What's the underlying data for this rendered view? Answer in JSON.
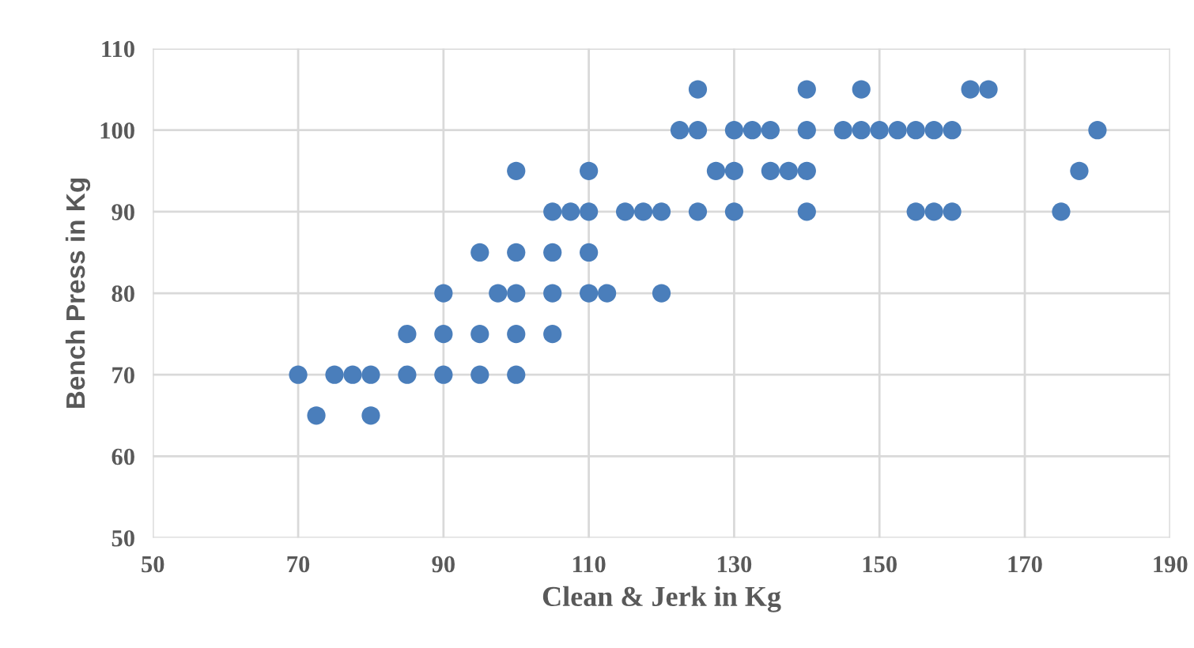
{
  "chart_data": {
    "type": "scatter",
    "xlabel": "Clean & Jerk in Kg",
    "ylabel": "Bench Press in Kg",
    "x": [
      70,
      75,
      77.5,
      80,
      85,
      90,
      95,
      100,
      72.5,
      80,
      85,
      90,
      95,
      100,
      105,
      90,
      97.5,
      100,
      105,
      110,
      112.5,
      120,
      95,
      100,
      105,
      110,
      105,
      107.5,
      110,
      115,
      117.5,
      120,
      125,
      130,
      140,
      155,
      157.5,
      160,
      175,
      100,
      110,
      127.5,
      130,
      135,
      137.5,
      140,
      177.5,
      122.5,
      125,
      130,
      132.5,
      135,
      140,
      145,
      147.5,
      150,
      152.5,
      155,
      157.5,
      160,
      180,
      125,
      140,
      147.5,
      162.5,
      165
    ],
    "values": [
      70,
      70,
      70,
      70,
      70,
      70,
      70,
      70,
      65,
      65,
      75,
      75,
      75,
      75,
      75,
      80,
      80,
      80,
      80,
      80,
      80,
      80,
      85,
      85,
      85,
      85,
      90,
      90,
      90,
      90,
      90,
      90,
      90,
      90,
      90,
      90,
      90,
      90,
      90,
      95,
      95,
      95,
      95,
      95,
      95,
      95,
      95,
      100,
      100,
      100,
      100,
      100,
      100,
      100,
      100,
      100,
      100,
      100,
      100,
      100,
      100,
      105,
      105,
      105,
      105,
      105
    ],
    "color": "#4a7ebb",
    "marker": "circle",
    "xlim": [
      50,
      190
    ],
    "xticks": [
      50,
      70,
      90,
      110,
      130,
      150,
      170,
      190
    ],
    "ylim": [
      50,
      110
    ],
    "yticks": [
      50,
      60,
      70,
      80,
      90,
      100,
      110
    ],
    "grid": true
  }
}
